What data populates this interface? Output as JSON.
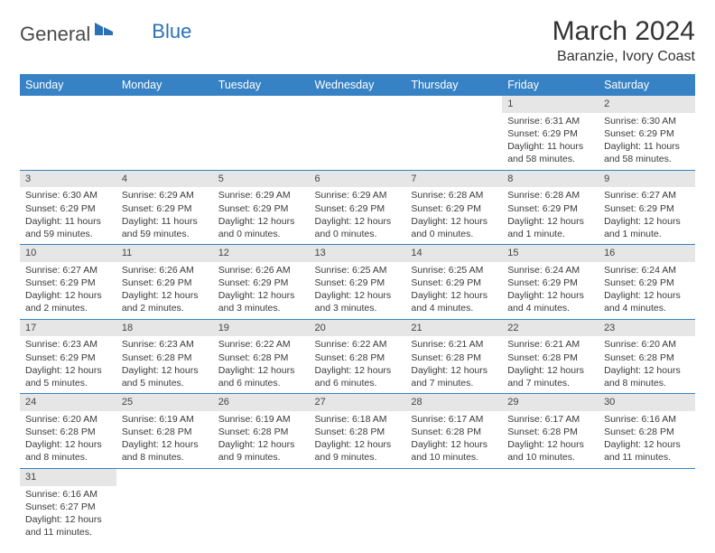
{
  "logo": {
    "text1": "General",
    "text2": "Blue",
    "icon_color": "#2a72b5"
  },
  "title": "March 2024",
  "subtitle": "Baranzie, Ivory Coast",
  "colors": {
    "header_bg": "#3682c4",
    "header_fg": "#ffffff",
    "daynum_bg": "#e6e6e6",
    "row_border": "#3682c4",
    "text": "#3a3a3a"
  },
  "weekdays": [
    "Sunday",
    "Monday",
    "Tuesday",
    "Wednesday",
    "Thursday",
    "Friday",
    "Saturday"
  ],
  "weeks": [
    [
      null,
      null,
      null,
      null,
      null,
      {
        "n": "1",
        "sr": "6:31 AM",
        "ss": "6:29 PM",
        "dl": "11 hours and 58 minutes."
      },
      {
        "n": "2",
        "sr": "6:30 AM",
        "ss": "6:29 PM",
        "dl": "11 hours and 58 minutes."
      }
    ],
    [
      {
        "n": "3",
        "sr": "6:30 AM",
        "ss": "6:29 PM",
        "dl": "11 hours and 59 minutes."
      },
      {
        "n": "4",
        "sr": "6:29 AM",
        "ss": "6:29 PM",
        "dl": "11 hours and 59 minutes."
      },
      {
        "n": "5",
        "sr": "6:29 AM",
        "ss": "6:29 PM",
        "dl": "12 hours and 0 minutes."
      },
      {
        "n": "6",
        "sr": "6:29 AM",
        "ss": "6:29 PM",
        "dl": "12 hours and 0 minutes."
      },
      {
        "n": "7",
        "sr": "6:28 AM",
        "ss": "6:29 PM",
        "dl": "12 hours and 0 minutes."
      },
      {
        "n": "8",
        "sr": "6:28 AM",
        "ss": "6:29 PM",
        "dl": "12 hours and 1 minute."
      },
      {
        "n": "9",
        "sr": "6:27 AM",
        "ss": "6:29 PM",
        "dl": "12 hours and 1 minute."
      }
    ],
    [
      {
        "n": "10",
        "sr": "6:27 AM",
        "ss": "6:29 PM",
        "dl": "12 hours and 2 minutes."
      },
      {
        "n": "11",
        "sr": "6:26 AM",
        "ss": "6:29 PM",
        "dl": "12 hours and 2 minutes."
      },
      {
        "n": "12",
        "sr": "6:26 AM",
        "ss": "6:29 PM",
        "dl": "12 hours and 3 minutes."
      },
      {
        "n": "13",
        "sr": "6:25 AM",
        "ss": "6:29 PM",
        "dl": "12 hours and 3 minutes."
      },
      {
        "n": "14",
        "sr": "6:25 AM",
        "ss": "6:29 PM",
        "dl": "12 hours and 4 minutes."
      },
      {
        "n": "15",
        "sr": "6:24 AM",
        "ss": "6:29 PM",
        "dl": "12 hours and 4 minutes."
      },
      {
        "n": "16",
        "sr": "6:24 AM",
        "ss": "6:29 PM",
        "dl": "12 hours and 4 minutes."
      }
    ],
    [
      {
        "n": "17",
        "sr": "6:23 AM",
        "ss": "6:29 PM",
        "dl": "12 hours and 5 minutes."
      },
      {
        "n": "18",
        "sr": "6:23 AM",
        "ss": "6:28 PM",
        "dl": "12 hours and 5 minutes."
      },
      {
        "n": "19",
        "sr": "6:22 AM",
        "ss": "6:28 PM",
        "dl": "12 hours and 6 minutes."
      },
      {
        "n": "20",
        "sr": "6:22 AM",
        "ss": "6:28 PM",
        "dl": "12 hours and 6 minutes."
      },
      {
        "n": "21",
        "sr": "6:21 AM",
        "ss": "6:28 PM",
        "dl": "12 hours and 7 minutes."
      },
      {
        "n": "22",
        "sr": "6:21 AM",
        "ss": "6:28 PM",
        "dl": "12 hours and 7 minutes."
      },
      {
        "n": "23",
        "sr": "6:20 AM",
        "ss": "6:28 PM",
        "dl": "12 hours and 8 minutes."
      }
    ],
    [
      {
        "n": "24",
        "sr": "6:20 AM",
        "ss": "6:28 PM",
        "dl": "12 hours and 8 minutes."
      },
      {
        "n": "25",
        "sr": "6:19 AM",
        "ss": "6:28 PM",
        "dl": "12 hours and 8 minutes."
      },
      {
        "n": "26",
        "sr": "6:19 AM",
        "ss": "6:28 PM",
        "dl": "12 hours and 9 minutes."
      },
      {
        "n": "27",
        "sr": "6:18 AM",
        "ss": "6:28 PM",
        "dl": "12 hours and 9 minutes."
      },
      {
        "n": "28",
        "sr": "6:17 AM",
        "ss": "6:28 PM",
        "dl": "12 hours and 10 minutes."
      },
      {
        "n": "29",
        "sr": "6:17 AM",
        "ss": "6:28 PM",
        "dl": "12 hours and 10 minutes."
      },
      {
        "n": "30",
        "sr": "6:16 AM",
        "ss": "6:28 PM",
        "dl": "12 hours and 11 minutes."
      }
    ],
    [
      {
        "n": "31",
        "sr": "6:16 AM",
        "ss": "6:27 PM",
        "dl": "12 hours and 11 minutes."
      },
      null,
      null,
      null,
      null,
      null,
      null
    ]
  ],
  "labels": {
    "sunrise": "Sunrise:",
    "sunset": "Sunset:",
    "daylight": "Daylight:"
  }
}
